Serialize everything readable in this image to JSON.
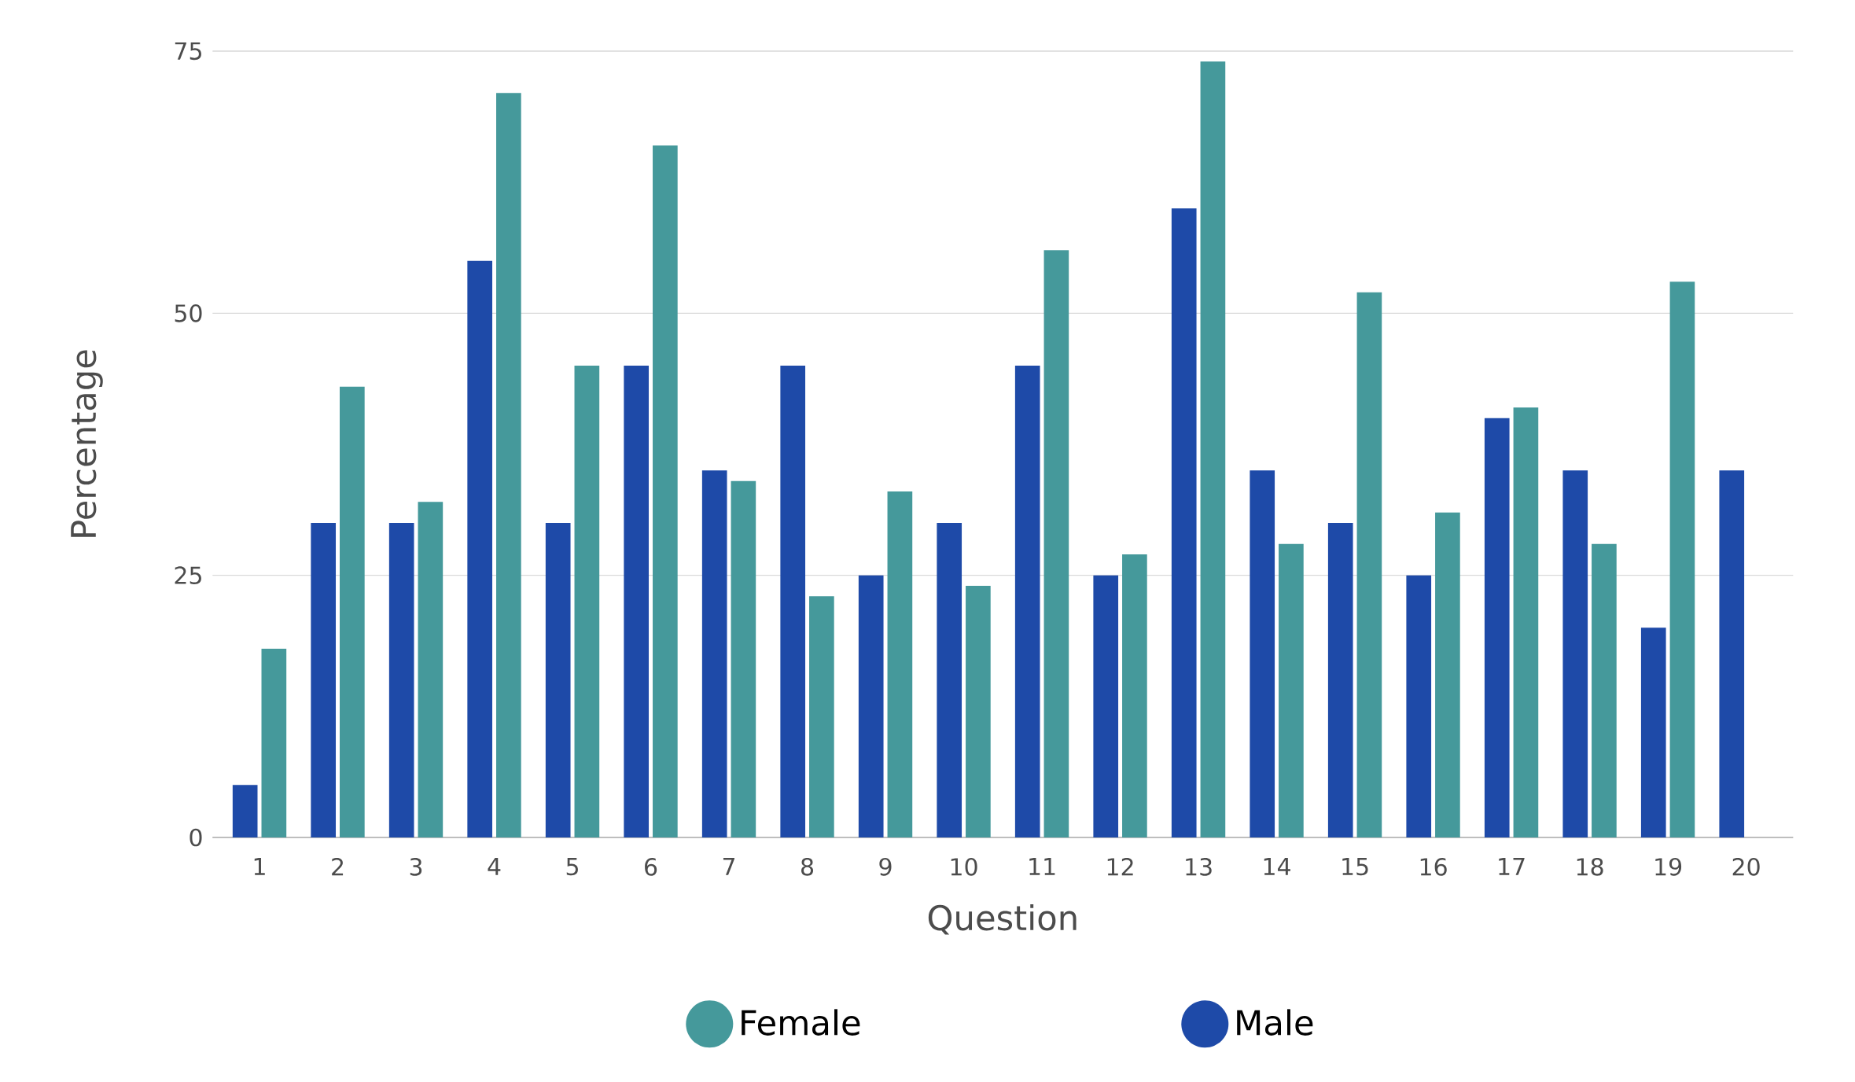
{
  "chart_data": {
    "type": "bar",
    "xlabel": "Question",
    "ylabel": "Percentage",
    "categories": [
      "1",
      "2",
      "3",
      "4",
      "5",
      "6",
      "7",
      "8",
      "9",
      "10",
      "11",
      "12",
      "13",
      "14",
      "15",
      "16",
      "17",
      "18",
      "19",
      "20"
    ],
    "series": [
      {
        "name": "Male",
        "color": "#1e4aa8",
        "values": [
          5,
          30,
          30,
          55,
          30,
          45,
          35,
          45,
          25,
          30,
          45,
          25,
          60,
          35,
          30,
          25,
          40,
          35,
          20,
          35
        ]
      },
      {
        "name": "Female",
        "color": "#45999b",
        "values": [
          18,
          43,
          32,
          71,
          45,
          66,
          34,
          23,
          33,
          24,
          56,
          27,
          74,
          28,
          52,
          31,
          41,
          28,
          53,
          null
        ]
      }
    ],
    "ylim": [
      0,
      75
    ],
    "yticks": [
      0,
      25,
      50,
      75
    ],
    "grid": "y",
    "legend": "bottom"
  }
}
